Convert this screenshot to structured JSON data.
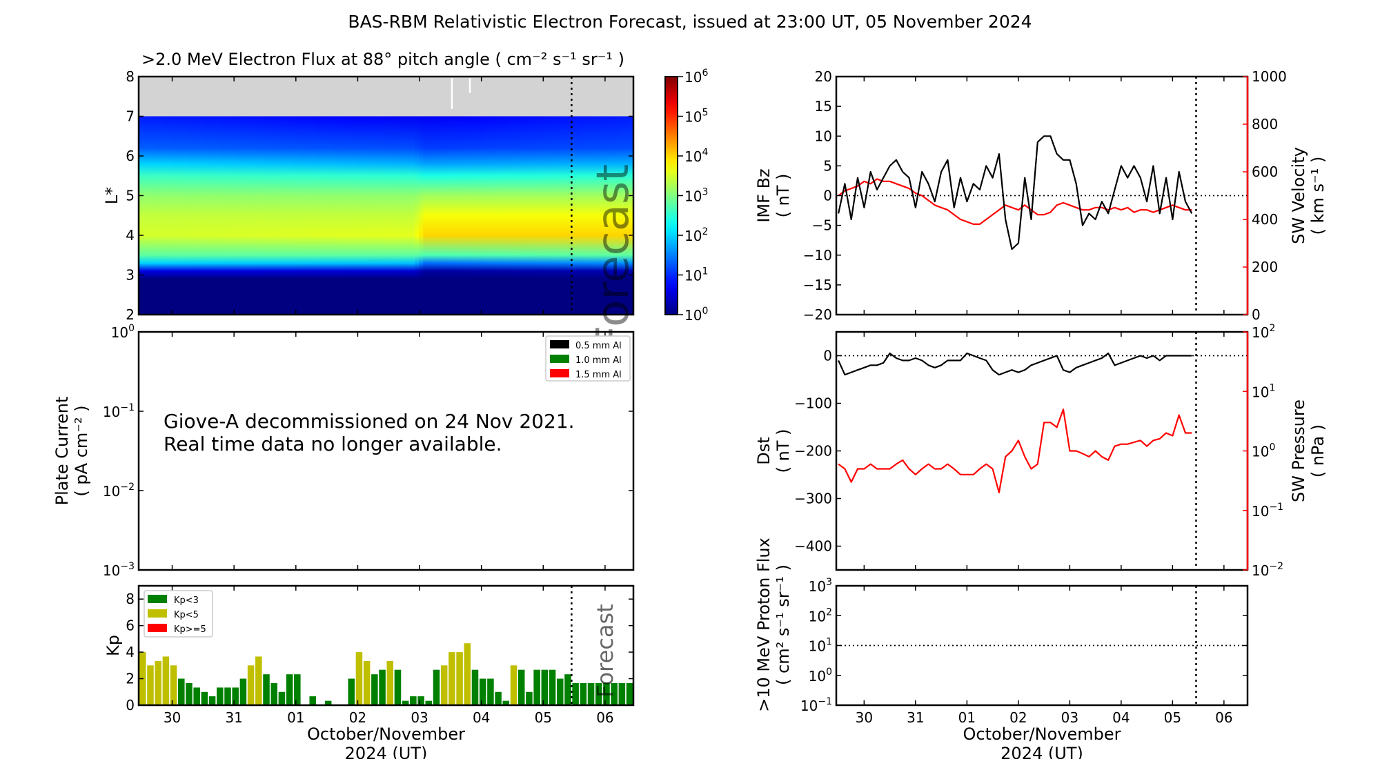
{
  "page": {
    "title": "BAS-RBM Relativistic Electron Forecast, issued at 23:00 UT, 05 November 2024"
  },
  "time_axis": {
    "range": [
      "2024-10-29T23:00:00Z",
      "2024-11-06T23:00:00Z"
    ],
    "forecast_time": "2024-11-05T23:00:00Z",
    "tick_times": [
      "2024-10-30T12:00:00Z",
      "2024-10-31T12:00:00Z",
      "2024-11-01T12:00:00Z",
      "2024-11-02T12:00:00Z",
      "2024-11-03T12:00:00Z",
      "2024-11-04T12:00:00Z",
      "2024-11-05T12:00:00Z",
      "2024-11-06T12:00:00Z"
    ],
    "tick_labels": [
      "30",
      "31",
      "01",
      "02",
      "03",
      "04",
      "05",
      "06"
    ],
    "xlabel_line1": "October/November",
    "xlabel_line2": "2024 (UT)"
  },
  "chart_data": [
    {
      "type": "heatmap",
      "title": ">2.0 MeV Electron Flux at 88° pitch angle ( cm⁻² s⁻¹ sr⁻¹ )",
      "ylabel": "L*",
      "ylim": [
        2,
        8
      ],
      "yticks": [
        2,
        3,
        4,
        5,
        6,
        7,
        8
      ],
      "no_data_above_L": 7,
      "no_data_color": "#d3d3d3",
      "colormap": "jet",
      "color_scale": "log",
      "clim": [
        1,
        1000000
      ],
      "colorbar_ticks": [
        0,
        1,
        2,
        3,
        4,
        5,
        6
      ],
      "watermark": "Forecast",
      "L_values": [
        2.0,
        2.9,
        3.1,
        3.3,
        3.5,
        4.0,
        4.5,
        5.0,
        5.5,
        5.8,
        6.2,
        7.0
      ],
      "profiles": [
        {
          "time": "2024-10-29T23:00:00Z",
          "log10_flux": [
            0,
            0,
            0.6,
            2.0,
            2.8,
            3.5,
            3.4,
            3.1,
            2.6,
            2.0,
            1.3,
            0.9
          ]
        },
        {
          "time": "2024-11-03T10:00:00Z",
          "log10_flux": [
            0,
            0,
            0.5,
            1.9,
            2.8,
            3.6,
            3.4,
            3.1,
            2.5,
            1.8,
            1.2,
            0.7
          ]
        },
        {
          "time": "2024-11-03T14:00:00Z",
          "log10_flux": [
            0,
            0,
            0.2,
            1.4,
            2.7,
            4.0,
            3.7,
            3.2,
            2.4,
            1.7,
            1.1,
            0.7
          ]
        },
        {
          "time": "2024-11-06T23:00:00Z",
          "log10_flux": [
            0,
            0,
            0.3,
            1.6,
            2.8,
            4.0,
            3.7,
            3.2,
            2.5,
            1.8,
            1.2,
            0.9
          ]
        }
      ]
    },
    {
      "type": "line",
      "ylabel_line1": "Plate Current",
      "ylabel_line2": "( pA cm⁻² )",
      "yscale": "log",
      "ylim": [
        0.001,
        1
      ],
      "yticks_exp": [
        -3,
        -2,
        -1,
        0
      ],
      "legend": [
        {
          "name": "0.5 mm Al",
          "color": "#000000"
        },
        {
          "name": "1.0 mm Al",
          "color": "#008000"
        },
        {
          "name": "1.5 mm Al",
          "color": "#ff0000"
        }
      ],
      "legend_position": "top-right",
      "annotation_line1": "Giove-A decommissioned on 24 Nov 2021.",
      "annotation_line2": "Real time data no longer available.",
      "series": []
    },
    {
      "type": "bar",
      "ylabel": "Kp",
      "ylim": [
        0,
        9
      ],
      "yticks": [
        0,
        2,
        4,
        6,
        8
      ],
      "bar_interval_hours": 3,
      "first_bar_time": "2024-10-29T23:00:00Z",
      "legend": [
        {
          "name": "Kp<3",
          "color": "#008000"
        },
        {
          "name": "Kp<5",
          "color": "#bfbf00"
        },
        {
          "name": "Kp>=5",
          "color": "#ff0000"
        }
      ],
      "legend_position": "top-left",
      "watermark": "Forecast",
      "values": [
        4,
        3,
        3.33,
        3.67,
        3,
        2,
        1.67,
        1.33,
        1,
        0.67,
        1.33,
        1.33,
        1.33,
        2,
        3,
        3.67,
        2.33,
        1.67,
        1,
        2.33,
        2.33,
        0,
        0.67,
        0,
        0.33,
        0,
        0,
        2,
        4,
        3.33,
        2.33,
        2.67,
        3.33,
        2.67,
        0.33,
        0.67,
        0.67,
        0.33,
        2.67,
        3,
        4,
        4,
        4.67,
        2.67,
        2,
        2,
        1,
        0.33,
        3,
        2.67,
        1,
        2.67,
        2.67,
        2.67,
        2,
        2.33,
        1.67,
        1.67,
        1.67,
        1.67,
        1.67,
        1.67,
        1.67,
        1.67
      ]
    },
    {
      "type": "line",
      "sample_times_start": "2024-10-30T00:00:00Z",
      "sample_interval_hours": 3,
      "left": {
        "ylabel_line1": "IMF Bz",
        "ylabel_line2": "( nT )",
        "ylim": [
          -20,
          20
        ],
        "yticks": [
          -20,
          -15,
          -10,
          -5,
          0,
          5,
          10,
          15,
          20
        ],
        "color": "#000000",
        "reference_line": 0
      },
      "right": {
        "ylabel_line1": "SW Velocity",
        "ylabel_line2": "( km s⁻¹ )",
        "ylim": [
          0,
          1000
        ],
        "yticks": [
          0,
          200,
          400,
          600,
          800,
          1000
        ],
        "color": "#ff0000"
      },
      "series": [
        {
          "axis": "left",
          "color": "#000000",
          "values": [
            -3,
            2,
            -4,
            3,
            -2,
            4,
            1,
            3,
            5,
            6,
            4,
            3,
            -2,
            4,
            2,
            -1,
            4,
            6,
            -2,
            3,
            -1,
            2,
            1,
            5,
            3,
            7,
            -4,
            -9,
            -8,
            3,
            -4,
            9,
            10,
            10,
            7,
            6,
            6,
            2,
            -5,
            -3,
            -4,
            -1,
            -3,
            1,
            5,
            3,
            5,
            3,
            -1,
            5,
            -3,
            3,
            -4,
            4,
            -1,
            -3
          ]
        },
        {
          "axis": "right",
          "color": "#ff0000",
          "values": [
            500,
            520,
            530,
            540,
            560,
            550,
            570,
            560,
            560,
            550,
            540,
            530,
            510,
            500,
            480,
            460,
            450,
            440,
            420,
            400,
            390,
            380,
            380,
            400,
            420,
            440,
            460,
            450,
            440,
            460,
            440,
            420,
            420,
            430,
            460,
            470,
            460,
            450,
            440,
            440,
            450,
            450,
            440,
            450,
            440,
            450,
            430,
            440,
            440,
            430,
            440,
            450,
            460,
            450,
            440,
            440
          ]
        }
      ]
    },
    {
      "type": "line",
      "sample_times_start": "2024-10-30T00:00:00Z",
      "sample_interval_hours": 3,
      "left": {
        "ylabel_line1": "Dst",
        "ylabel_line2": "( nT )",
        "ylim": [
          -450,
          50
        ],
        "yticks": [
          -400,
          -300,
          -200,
          -100,
          0
        ],
        "color": "#000000",
        "reference_line": 0
      },
      "right": {
        "ylabel_line1": "SW Pressure",
        "ylabel_line2": "( nPa )",
        "yscale": "log",
        "ylim": [
          0.01,
          100
        ],
        "yticks_exp": [
          -2,
          -1,
          0,
          1,
          2
        ],
        "color": "#ff0000"
      },
      "series": [
        {
          "axis": "left",
          "color": "#000000",
          "values": [
            -10,
            -40,
            -35,
            -30,
            -25,
            -20,
            -20,
            -15,
            5,
            -5,
            -10,
            -10,
            -5,
            -10,
            -20,
            -25,
            -20,
            -10,
            -10,
            -10,
            5,
            0,
            -5,
            -10,
            -30,
            -40,
            -35,
            -30,
            -35,
            -30,
            -20,
            -15,
            -10,
            -5,
            0,
            -30,
            -35,
            -25,
            -20,
            -15,
            -10,
            -5,
            5,
            -20,
            -15,
            -10,
            -5,
            0,
            -5,
            0,
            -10,
            0,
            0,
            0,
            0,
            0
          ]
        },
        {
          "axis": "right",
          "color": "#ff0000",
          "values": [
            0.6,
            0.5,
            0.3,
            0.5,
            0.5,
            0.6,
            0.5,
            0.5,
            0.5,
            0.6,
            0.7,
            0.5,
            0.4,
            0.5,
            0.6,
            0.5,
            0.5,
            0.6,
            0.5,
            0.4,
            0.4,
            0.4,
            0.5,
            0.6,
            0.5,
            0.2,
            0.8,
            1.0,
            1.5,
            0.8,
            0.5,
            0.6,
            3,
            3,
            2.5,
            5,
            1,
            1,
            0.9,
            0.8,
            1,
            0.8,
            0.7,
            1.2,
            1.3,
            1.3,
            1.4,
            1.5,
            1.2,
            1.5,
            1.6,
            2,
            1.8,
            4,
            2,
            2
          ]
        }
      ]
    },
    {
      "type": "line",
      "ylabel_line1": ">10 MeV Proton Flux",
      "ylabel_line2": "( cm² s⁻¹ sr⁻¹ )",
      "yscale": "log",
      "ylim": [
        0.1,
        1000
      ],
      "yticks_exp": [
        -1,
        0,
        1,
        2,
        3
      ],
      "reference_line": 10,
      "series": []
    }
  ]
}
